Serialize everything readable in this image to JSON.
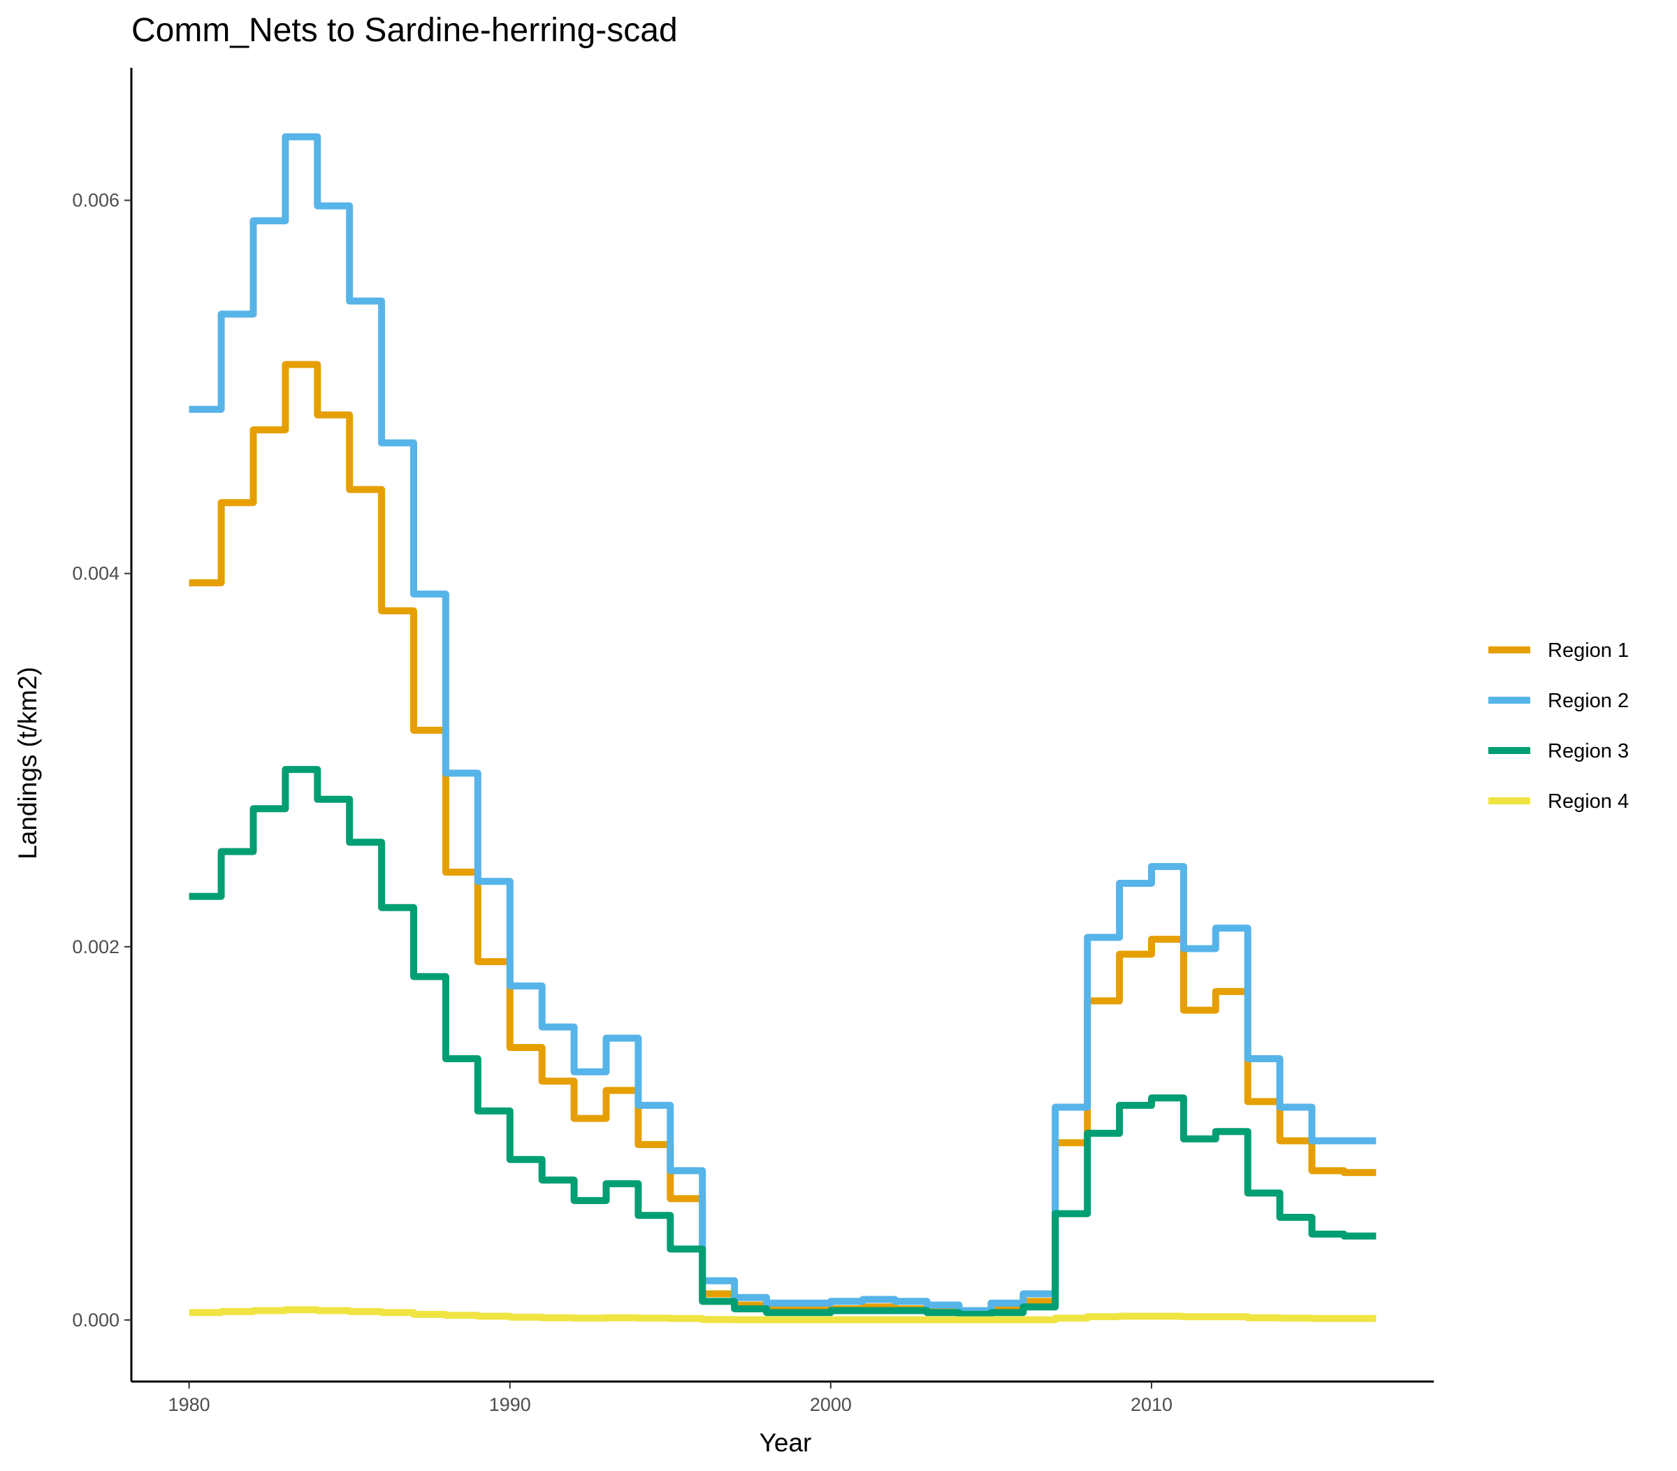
{
  "chart_data": {
    "type": "line",
    "title": "Comm_Nets to Sardine-herring-scad",
    "xlabel": "Year",
    "ylabel": "Landings (t/km2)",
    "xlim": [
      1978.2,
      2018.8
    ],
    "ylim": [
      -0.00033,
      0.00671
    ],
    "xticks": [
      1980,
      1990,
      2000,
      2010
    ],
    "xtick_labels": [
      "1980",
      "1990",
      "2000",
      "2010"
    ],
    "yticks": [
      0,
      0.002,
      0.004,
      0.006
    ],
    "ytick_labels": [
      "0.000",
      "0.002",
      "0.004",
      "0.006"
    ],
    "grid": false,
    "legend_position": "right",
    "line_shape": "step",
    "series": [
      {
        "name": "Region 1",
        "color": "#E69F00",
        "x": [
          1980,
          1981,
          1982,
          1983,
          1984,
          1985,
          1986,
          1987,
          1988,
          1989,
          1990,
          1991,
          1992,
          1993,
          1994,
          1995,
          1996,
          1997,
          1998,
          1999,
          2000,
          2001,
          2002,
          2003,
          2004,
          2005,
          2006,
          2007,
          2008,
          2009,
          2010,
          2011,
          2012,
          2013,
          2014,
          2015,
          2016
        ],
        "y": [
          0.00395,
          0.00438,
          0.00477,
          0.00512,
          0.00485,
          0.00445,
          0.0038,
          0.00316,
          0.0024,
          0.00192,
          0.00146,
          0.00128,
          0.00108,
          0.00123,
          0.00094,
          0.00065,
          0.00014,
          8e-05,
          6e-05,
          6e-05,
          6e-05,
          7e-05,
          6e-05,
          5e-05,
          4e-05,
          6e-05,
          0.0001,
          0.00095,
          0.00171,
          0.00196,
          0.00204,
          0.00166,
          0.00176,
          0.00117,
          0.00096,
          0.0008,
          0.00079
        ]
      },
      {
        "name": "Region 2",
        "color": "#56B4E9",
        "x": [
          1980,
          1981,
          1982,
          1983,
          1984,
          1985,
          1986,
          1987,
          1988,
          1989,
          1990,
          1991,
          1992,
          1993,
          1994,
          1995,
          1996,
          1997,
          1998,
          1999,
          2000,
          2001,
          2002,
          2003,
          2004,
          2005,
          2006,
          2007,
          2008,
          2009,
          2010,
          2011,
          2012,
          2013,
          2014,
          2015,
          2016
        ],
        "y": [
          0.00488,
          0.00539,
          0.00589,
          0.00634,
          0.00597,
          0.00546,
          0.0047,
          0.00389,
          0.00293,
          0.00235,
          0.00179,
          0.00157,
          0.00133,
          0.00151,
          0.00115,
          0.0008,
          0.00021,
          0.00012,
          9e-05,
          9e-05,
          0.0001,
          0.00011,
          0.0001,
          8e-05,
          5e-05,
          9e-05,
          0.00014,
          0.00114,
          0.00205,
          0.00234,
          0.00243,
          0.00199,
          0.0021,
          0.0014,
          0.00114,
          0.00096,
          0.00096
        ]
      },
      {
        "name": "Region 3",
        "color": "#009E73",
        "x": [
          1980,
          1981,
          1982,
          1983,
          1984,
          1985,
          1986,
          1987,
          1988,
          1989,
          1990,
          1991,
          1992,
          1993,
          1994,
          1995,
          1996,
          1997,
          1998,
          1999,
          2000,
          2001,
          2002,
          2003,
          2004,
          2005,
          2006,
          2007,
          2008,
          2009,
          2010,
          2011,
          2012,
          2013,
          2014,
          2015,
          2016
        ],
        "y": [
          0.00227,
          0.00251,
          0.00274,
          0.00295,
          0.00279,
          0.00256,
          0.00221,
          0.00184,
          0.0014,
          0.00112,
          0.00086,
          0.00075,
          0.00064,
          0.00073,
          0.00056,
          0.00038,
          0.0001,
          6e-05,
          4e-05,
          4e-05,
          5e-05,
          5e-05,
          5e-05,
          4e-05,
          3e-05,
          4e-05,
          7e-05,
          0.00057,
          0.001,
          0.00115,
          0.00119,
          0.00097,
          0.00101,
          0.00068,
          0.00055,
          0.00046,
          0.00045
        ]
      },
      {
        "name": "Region 4",
        "color": "#F0E442",
        "x": [
          1980,
          1981,
          1982,
          1983,
          1984,
          1985,
          1986,
          1987,
          1988,
          1989,
          1990,
          1991,
          1992,
          1993,
          1994,
          1995,
          1996,
          1997,
          1998,
          1999,
          2000,
          2001,
          2002,
          2003,
          2004,
          2005,
          2006,
          2007,
          2008,
          2009,
          2010,
          2011,
          2012,
          2013,
          2014,
          2015,
          2016
        ],
        "y": [
          4e-05,
          4.5e-05,
          5e-05,
          5.5e-05,
          5e-05,
          4.5e-05,
          4e-05,
          3e-05,
          2.5e-05,
          2e-05,
          1.5e-05,
          1.2e-05,
          1e-05,
          1.2e-05,
          1e-05,
          8e-06,
          2e-06,
          1e-06,
          1e-06,
          1e-06,
          1e-06,
          1e-06,
          1e-06,
          1e-06,
          1e-06,
          1e-06,
          1e-06,
          1e-05,
          1.8e-05,
          2e-05,
          2e-05,
          1.7e-05,
          1.7e-05,
          1.2e-05,
          1e-05,
          8e-06,
          8e-06
        ]
      }
    ]
  }
}
